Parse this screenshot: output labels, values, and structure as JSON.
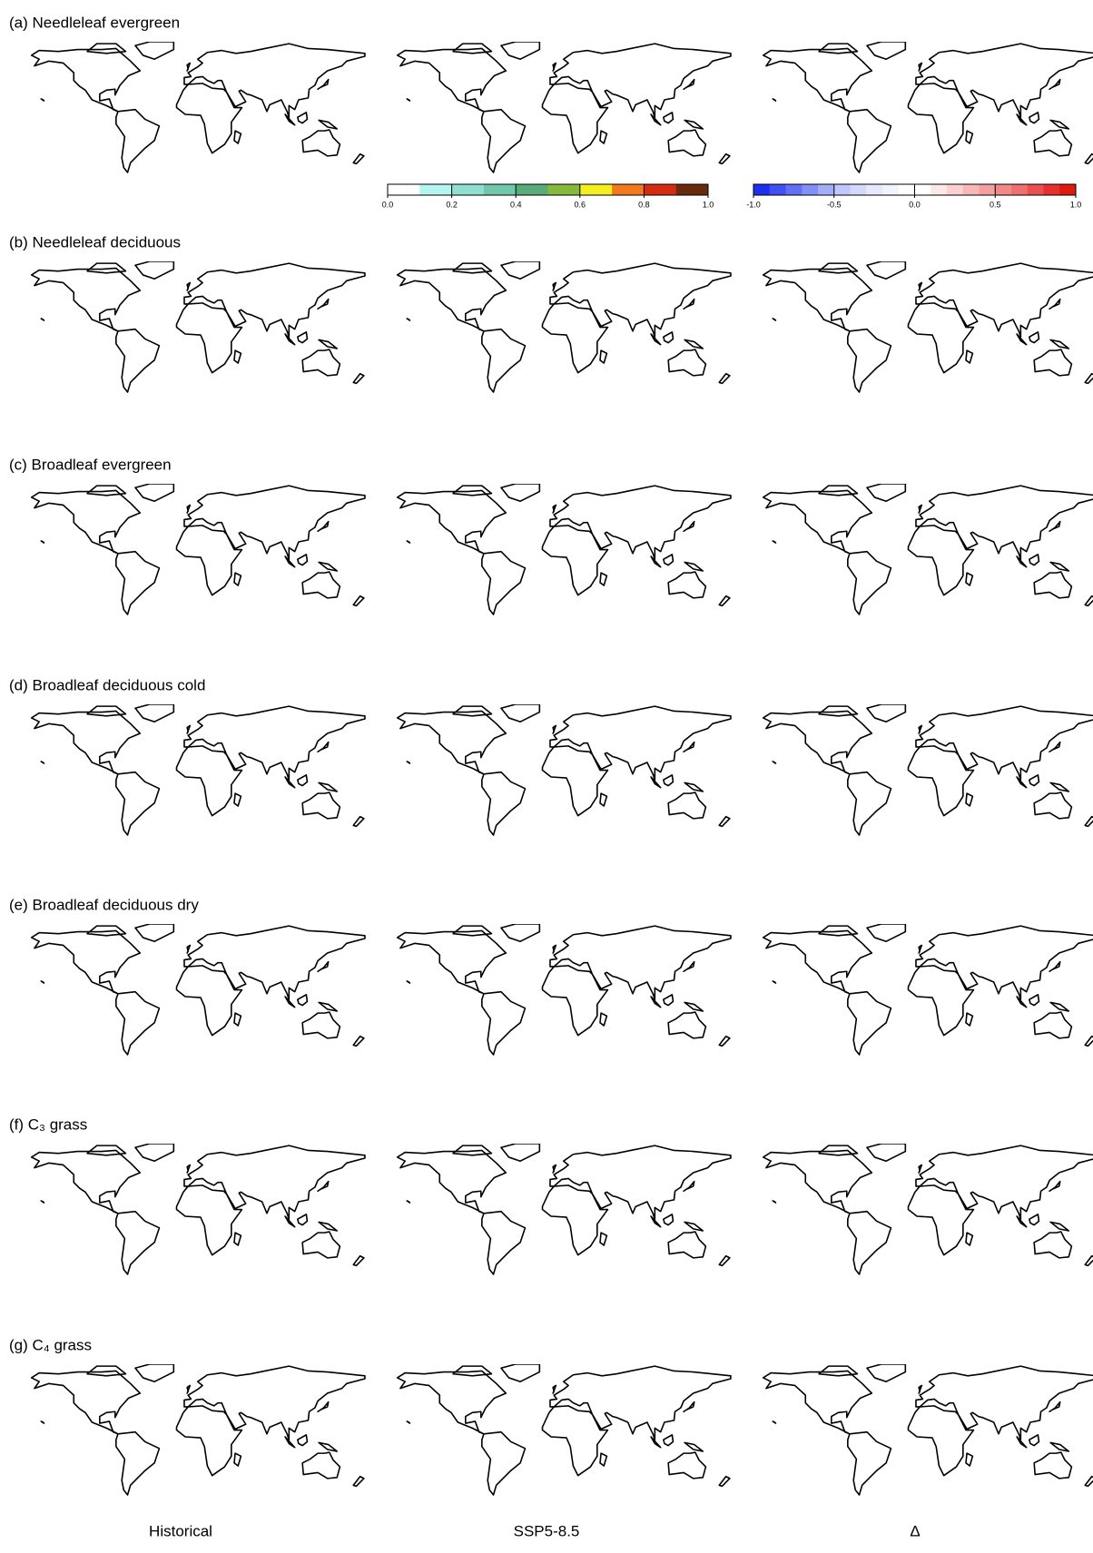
{
  "figure": {
    "rows": [
      {
        "title": "(a) Needleleaf evergreen"
      },
      {
        "title": "(b) Needleleaf deciduous"
      },
      {
        "title": "(c) Broadleaf evergreen"
      },
      {
        "title": "(d) Broadleaf deciduous cold"
      },
      {
        "title": "(e) Broadleaf deciduous dry"
      },
      {
        "title": "(f)  C₃ grass"
      },
      {
        "title": "(g) C₄ grass"
      }
    ],
    "columns": [
      "Historical",
      "SSP5-8.5",
      "Δ"
    ],
    "colorbars": [
      {
        "range": [
          0,
          1
        ],
        "ticks": [
          {
            "value": 0,
            "label": "0.0"
          },
          0.2,
          0.4,
          0.6,
          0.8,
          {
            "value": 1,
            "label": "1.0"
          }
        ],
        "colors": [
          "#ffffff",
          "#b4f5f0",
          "#8fe0d0",
          "#6fc8ac",
          "#58aa78",
          "#86b83c",
          "#f4f020",
          "#f27a1c",
          "#d42c12",
          "#6a2a0c"
        ]
      },
      {
        "range": [
          -1,
          1
        ],
        "ticks": [
          {
            "value": -1,
            "label": "-1.0"
          },
          -0.5,
          {
            "value": 0,
            "label": "0.0"
          },
          0.5,
          {
            "value": 1,
            "label": "1.0"
          }
        ],
        "colors": [
          "#1f2ff0",
          "#4050f2",
          "#6170f4",
          "#8290f6",
          "#a3aef8",
          "#c0c8fa",
          "#d4d9fb",
          "#e6e9fd",
          "#f2f3fe",
          "#ffffff",
          "#ffffff",
          "#fde8e8",
          "#fbd0d0",
          "#f8b8b8",
          "#f5a0a0",
          "#f28888",
          "#ee7070",
          "#ea5050",
          "#e53030",
          "#e01a10"
        ]
      }
    ]
  }
}
